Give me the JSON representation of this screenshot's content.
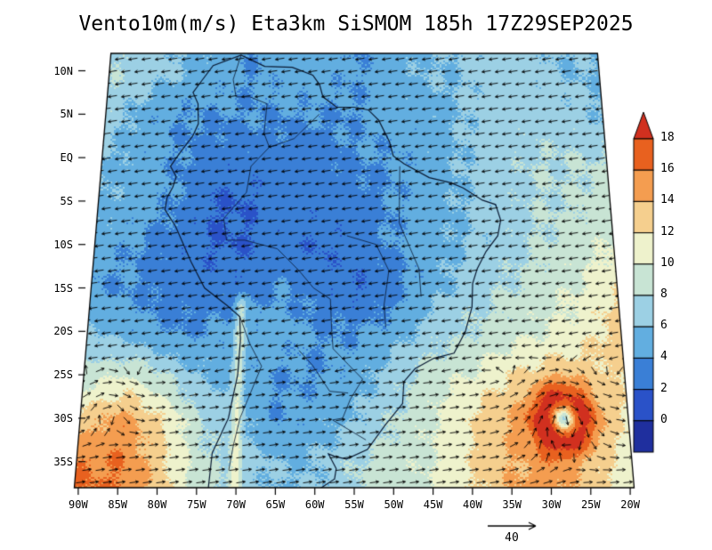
{
  "title": "Vento10m(m/s) Eta3km SiSMOM 185h 17Z29SEP2025",
  "reference_vector_label": "40",
  "chart_data": {
    "type": "heatmap",
    "title": "Vento10m(m/s) Eta3km SiSMOM 185h 17Z29SEP2025",
    "variable": "10 m wind speed (m/s) shaded with wind direction vectors",
    "lat_tick_labels": [
      "10N",
      "5N",
      "EQ",
      "5S",
      "10S",
      "15S",
      "20S",
      "25S",
      "30S",
      "35S"
    ],
    "lon_tick_labels": [
      "90W",
      "85W",
      "80W",
      "75W",
      "70W",
      "65W",
      "60W",
      "55W",
      "50W",
      "45W",
      "40W",
      "35W",
      "30W",
      "25W",
      "20W"
    ],
    "colorbar": {
      "levels": [
        0,
        2,
        4,
        6,
        8,
        10,
        12,
        14,
        16,
        18
      ],
      "colors": [
        "#1f2f9e",
        "#2a52c8",
        "#3a7fd6",
        "#62aee0",
        "#9cd0e4",
        "#c8e4d4",
        "#eef2cc",
        "#f5cf8e",
        "#f49d50",
        "#e8611f",
        "#d1301f"
      ]
    },
    "reference_vector": 40,
    "grid": {
      "lon_start": -90,
      "lon_step": 5,
      "lat_start": 10,
      "lat_step": -5,
      "speeds_mps": [
        [
          8,
          7,
          6,
          5,
          4,
          5,
          5,
          4,
          5,
          6,
          6,
          7,
          7,
          6,
          6
        ],
        [
          7,
          5,
          4,
          4,
          4,
          4,
          4,
          4,
          5,
          5,
          6,
          7,
          7,
          7,
          6
        ],
        [
          6,
          5,
          4,
          3,
          3,
          3,
          3,
          4,
          4,
          5,
          6,
          7,
          8,
          8,
          8
        ],
        [
          6,
          5,
          4,
          2,
          2,
          3,
          3,
          3,
          4,
          5,
          6,
          7,
          8,
          8,
          9
        ],
        [
          5,
          4,
          3,
          2,
          2,
          3,
          2,
          3,
          4,
          5,
          6,
          7,
          8,
          9,
          10
        ],
        [
          4,
          4,
          3,
          3,
          3,
          4,
          3,
          2,
          3,
          5,
          7,
          8,
          9,
          10,
          12
        ],
        [
          6,
          5,
          4,
          4,
          5,
          5,
          4,
          4,
          5,
          7,
          8,
          9,
          10,
          11,
          13
        ],
        [
          9,
          10,
          8,
          6,
          5,
          4,
          4,
          5,
          7,
          9,
          10,
          12,
          13,
          13,
          12
        ],
        [
          13,
          15,
          12,
          8,
          6,
          4,
          5,
          6,
          8,
          10,
          12,
          14,
          15,
          14,
          12
        ],
        [
          16,
          16,
          13,
          9,
          7,
          6,
          6,
          8,
          9,
          10,
          12,
          14,
          15,
          13,
          11
        ]
      ]
    },
    "cyclone": {
      "lon": -28,
      "lat": -30
    }
  }
}
